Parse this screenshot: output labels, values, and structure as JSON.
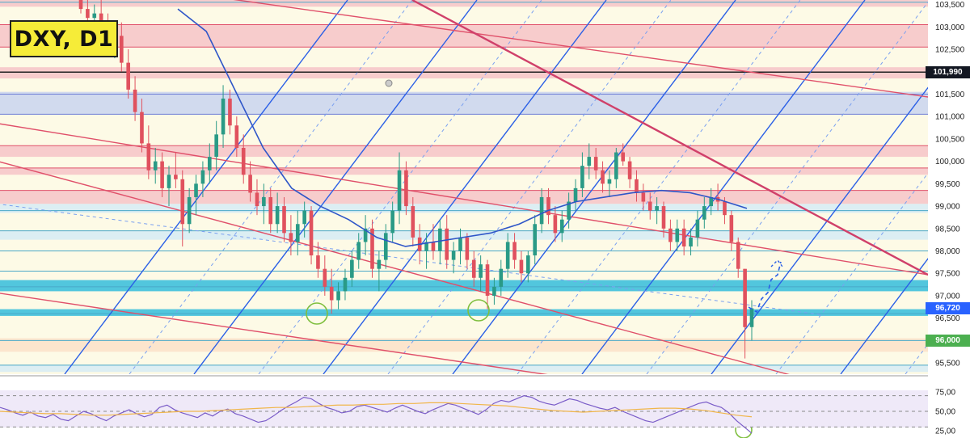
{
  "title": "DXY, D1",
  "colors": {
    "background": "#fdfae6",
    "red_zone": "#f6c3c7",
    "red_line": "#e0506a",
    "blue_zone": "#c9d3ef",
    "cyan_zone": "#3fc0db",
    "light_blue_zone": "#d6ebf5",
    "orange_zone": "#fbe0c8",
    "blue_line": "#2a5fe6",
    "up_candle": "#2a9a86",
    "down_candle": "#e0515e",
    "ma_line": "#2f56c8",
    "rsi_line": "#7a5cc8",
    "rsi_ma": "#f0b64a",
    "rsi_band": "#efe9f8",
    "green_circle": "#7fbf3f",
    "price_tag_black": "#131722",
    "price_tag_blue": "#2962ff",
    "price_tag_green": "#4caf50"
  },
  "price_axis": {
    "labels": [
      "103,500",
      "103,000",
      "102,500",
      "101,500",
      "101,000",
      "100,500",
      "100,000",
      "99,500",
      "99,000",
      "98,500",
      "98,000",
      "97,500",
      "97,000",
      "96,500",
      "95,500"
    ],
    "tags": [
      {
        "name": "level-tag",
        "text": "101,990",
        "value": 101.99,
        "color": "#131722"
      },
      {
        "name": "price-tag",
        "text": "96,720",
        "value": 96.72,
        "color": "#2962ff"
      },
      {
        "name": "support-tag",
        "text": "96,000",
        "value": 96.0,
        "color": "#4caf50"
      }
    ]
  },
  "rsi_axis": {
    "labels": [
      "75,00",
      "50,00",
      "25,00"
    ]
  },
  "chart_data": {
    "type": "candlestick",
    "symbol": "DXY",
    "timeframe": "D1",
    "ylim": [
      95.25,
      103.6
    ],
    "candles": [
      [
        103.6,
        103.8,
        103.3,
        103.4
      ],
      [
        103.4,
        103.6,
        103.0,
        103.2
      ],
      [
        103.2,
        103.5,
        102.9,
        103.3
      ],
      [
        103.3,
        103.6,
        103.0,
        103.1
      ],
      [
        103.1,
        103.3,
        102.4,
        102.6
      ],
      [
        102.6,
        103.0,
        102.3,
        102.8
      ],
      [
        102.8,
        103.1,
        102.0,
        102.2
      ],
      [
        102.2,
        102.5,
        101.4,
        101.6
      ],
      [
        101.6,
        101.9,
        100.9,
        101.1
      ],
      [
        101.1,
        101.4,
        100.2,
        100.4
      ],
      [
        100.4,
        100.8,
        99.6,
        99.8
      ],
      [
        99.8,
        100.3,
        99.5,
        100.0
      ],
      [
        100.0,
        100.2,
        99.2,
        99.4
      ],
      [
        99.4,
        99.9,
        99.0,
        99.7
      ],
      [
        99.7,
        100.2,
        99.4,
        99.6
      ],
      [
        99.6,
        99.8,
        98.1,
        98.6
      ],
      [
        98.6,
        99.4,
        98.4,
        99.2
      ],
      [
        99.2,
        99.7,
        98.8,
        99.5
      ],
      [
        99.5,
        100.0,
        99.2,
        99.8
      ],
      [
        99.8,
        100.4,
        99.5,
        100.1
      ],
      [
        100.1,
        100.9,
        99.8,
        100.6
      ],
      [
        100.6,
        101.7,
        100.3,
        101.4
      ],
      [
        101.4,
        101.6,
        100.6,
        100.8
      ],
      [
        100.8,
        101.0,
        100.1,
        100.3
      ],
      [
        100.3,
        100.6,
        99.5,
        99.7
      ],
      [
        99.7,
        100.0,
        99.1,
        99.3
      ],
      [
        99.3,
        99.6,
        98.8,
        99.0
      ],
      [
        99.0,
        99.5,
        98.6,
        99.2
      ],
      [
        99.2,
        99.4,
        98.4,
        98.6
      ],
      [
        98.6,
        99.3,
        98.4,
        99.0
      ],
      [
        99.0,
        99.2,
        98.2,
        98.4
      ],
      [
        98.4,
        98.8,
        97.9,
        98.2
      ],
      [
        98.2,
        98.9,
        97.9,
        98.6
      ],
      [
        98.6,
        99.1,
        98.3,
        98.9
      ],
      [
        98.9,
        99.0,
        97.7,
        97.9
      ],
      [
        97.9,
        98.2,
        97.4,
        97.6
      ],
      [
        97.6,
        97.9,
        97.0,
        97.2
      ],
      [
        97.2,
        97.6,
        96.6,
        96.9
      ],
      [
        96.9,
        97.3,
        96.7,
        97.1
      ],
      [
        97.1,
        97.6,
        96.9,
        97.4
      ],
      [
        97.4,
        98.0,
        97.2,
        97.8
      ],
      [
        97.8,
        98.4,
        97.6,
        98.2
      ],
      [
        98.2,
        98.8,
        97.9,
        98.5
      ],
      [
        98.5,
        98.7,
        97.4,
        97.6
      ],
      [
        97.6,
        98.0,
        97.1,
        97.8
      ],
      [
        97.8,
        98.6,
        97.6,
        98.4
      ],
      [
        98.4,
        99.1,
        98.2,
        98.9
      ],
      [
        98.9,
        100.2,
        98.6,
        99.8
      ],
      [
        99.8,
        100.0,
        98.8,
        99.0
      ],
      [
        99.0,
        99.2,
        98.1,
        98.3
      ],
      [
        98.3,
        98.6,
        97.7,
        98.0
      ],
      [
        98.0,
        98.4,
        97.6,
        98.2
      ],
      [
        98.2,
        98.6,
        97.8,
        98.0
      ],
      [
        98.0,
        98.7,
        97.7,
        98.5
      ],
      [
        98.5,
        98.8,
        97.6,
        97.8
      ],
      [
        97.8,
        98.2,
        97.5,
        98.0
      ],
      [
        98.0,
        98.5,
        97.7,
        98.3
      ],
      [
        98.3,
        98.4,
        97.6,
        97.8
      ],
      [
        97.8,
        98.0,
        97.2,
        97.4
      ],
      [
        97.4,
        97.9,
        97.1,
        97.7
      ],
      [
        97.7,
        97.8,
        96.7,
        97.0
      ],
      [
        97.0,
        97.4,
        96.8,
        97.2
      ],
      [
        97.2,
        97.8,
        97.0,
        97.6
      ],
      [
        97.6,
        98.4,
        97.4,
        98.2
      ],
      [
        98.2,
        98.4,
        97.6,
        97.8
      ],
      [
        97.8,
        98.0,
        97.3,
        97.5
      ],
      [
        97.5,
        98.0,
        97.3,
        97.9
      ],
      [
        97.9,
        98.8,
        97.7,
        98.6
      ],
      [
        98.6,
        99.4,
        98.4,
        99.2
      ],
      [
        99.2,
        99.4,
        98.6,
        98.8
      ],
      [
        98.8,
        99.0,
        98.2,
        98.4
      ],
      [
        98.4,
        98.9,
        98.2,
        98.7
      ],
      [
        98.7,
        99.3,
        98.5,
        99.1
      ],
      [
        99.1,
        99.6,
        98.9,
        99.4
      ],
      [
        99.4,
        100.2,
        99.2,
        99.9
      ],
      [
        99.9,
        100.4,
        99.6,
        100.1
      ],
      [
        100.1,
        100.3,
        99.6,
        99.8
      ],
      [
        99.8,
        100.0,
        99.3,
        99.5
      ],
      [
        99.5,
        99.8,
        99.2,
        99.6
      ],
      [
        99.6,
        100.3,
        99.4,
        100.2
      ],
      [
        100.2,
        100.4,
        99.9,
        100.0
      ],
      [
        100.0,
        100.1,
        99.4,
        99.6
      ],
      [
        99.6,
        99.8,
        99.1,
        99.3
      ],
      [
        99.3,
        99.5,
        98.9,
        99.1
      ],
      [
        99.1,
        99.3,
        98.7,
        98.9
      ],
      [
        98.9,
        99.2,
        98.6,
        99.0
      ],
      [
        99.0,
        99.1,
        98.3,
        98.5
      ],
      [
        98.5,
        98.7,
        98.0,
        98.2
      ],
      [
        98.2,
        98.7,
        98.0,
        98.5
      ],
      [
        98.5,
        98.7,
        97.9,
        98.1
      ],
      [
        98.1,
        98.5,
        97.9,
        98.3
      ],
      [
        98.3,
        98.9,
        98.1,
        98.7
      ],
      [
        98.7,
        99.2,
        98.5,
        99.0
      ],
      [
        99.0,
        99.4,
        98.8,
        99.2
      ],
      [
        99.2,
        99.5,
        98.9,
        99.1
      ],
      [
        99.1,
        99.2,
        98.6,
        98.8
      ],
      [
        98.8,
        98.9,
        98.0,
        98.2
      ],
      [
        98.2,
        98.3,
        97.4,
        97.6
      ],
      [
        97.6,
        97.6,
        95.6,
        96.3
      ],
      [
        96.3,
        96.9,
        96.0,
        96.72
      ]
    ],
    "moving_average": [
      [
        0,
        103.4
      ],
      [
        20,
        102.9
      ],
      [
        40,
        101.6
      ],
      [
        60,
        100.3
      ],
      [
        80,
        99.4
      ],
      [
        100,
        99.0
      ],
      [
        120,
        98.7
      ],
      [
        140,
        98.3
      ],
      [
        160,
        98.1
      ],
      [
        180,
        98.2
      ],
      [
        200,
        98.3
      ],
      [
        220,
        98.4
      ],
      [
        240,
        98.6
      ],
      [
        260,
        98.9
      ],
      [
        280,
        99.1
      ],
      [
        300,
        99.2
      ],
      [
        320,
        99.3
      ],
      [
        340,
        99.35
      ],
      [
        360,
        99.3
      ],
      [
        380,
        99.15
      ],
      [
        400,
        98.95
      ]
    ],
    "horizontal_levels": [
      103.55,
      103.05,
      102.55,
      101.99,
      101.5,
      101.05,
      100.35,
      99.85,
      99.35,
      98.9,
      98.45,
      98.0,
      97.55,
      97.2,
      96.6,
      96.0,
      95.45
    ],
    "zones": [
      {
        "from": 103.45,
        "to": 103.65,
        "kind": "red"
      },
      {
        "from": 102.55,
        "to": 103.05,
        "kind": "red"
      },
      {
        "from": 101.85,
        "to": 102.1,
        "kind": "red"
      },
      {
        "from": 101.05,
        "to": 101.55,
        "kind": "blue"
      },
      {
        "from": 100.1,
        "to": 100.35,
        "kind": "red"
      },
      {
        "from": 99.7,
        "to": 99.85,
        "kind": "red"
      },
      {
        "from": 99.05,
        "to": 99.35,
        "kind": "red"
      },
      {
        "from": 98.85,
        "to": 99.05,
        "kind": "light_blue"
      },
      {
        "from": 98.25,
        "to": 98.45,
        "kind": "light_blue"
      },
      {
        "from": 97.1,
        "to": 97.35,
        "kind": "cyan"
      },
      {
        "from": 96.55,
        "to": 96.7,
        "kind": "cyan"
      },
      {
        "from": 95.75,
        "to": 96.05,
        "kind": "orange"
      },
      {
        "from": 95.3,
        "to": 95.45,
        "kind": "light_blue"
      }
    ],
    "rsi": {
      "ylim": [
        20,
        80
      ],
      "levels": [
        70,
        50,
        30
      ],
      "values": [
        55,
        52,
        48,
        45,
        49,
        44,
        42,
        46,
        40,
        38,
        44,
        50,
        47,
        42,
        38,
        44,
        48,
        52,
        47,
        43,
        46,
        55,
        58,
        52,
        48,
        45,
        42,
        48,
        44,
        50,
        53,
        47,
        44,
        40,
        36,
        38,
        44,
        51,
        57,
        62,
        68,
        66,
        60,
        55,
        52,
        48,
        50,
        56,
        58,
        55,
        52,
        49,
        54,
        58,
        54,
        50,
        47,
        52,
        56,
        60,
        58,
        54,
        50,
        46,
        52,
        60,
        64,
        62,
        66,
        70,
        68,
        63,
        60,
        58,
        62,
        66,
        64,
        60,
        57,
        54,
        52,
        55,
        50,
        46,
        42,
        38,
        36,
        40,
        44,
        48,
        52,
        56,
        60,
        62,
        58,
        55,
        48,
        38,
        30,
        22
      ],
      "ma": [
        50,
        49,
        48,
        47,
        47,
        46,
        45,
        45,
        46,
        47,
        48,
        49,
        50,
        50,
        51,
        52,
        53,
        54,
        55,
        55,
        56,
        57,
        58,
        58,
        59,
        59,
        60,
        60,
        61,
        61,
        60,
        59,
        58,
        57,
        55,
        53,
        51,
        50,
        49,
        50,
        51,
        52,
        53,
        54,
        54,
        53,
        51,
        48,
        45,
        43
      ]
    }
  }
}
